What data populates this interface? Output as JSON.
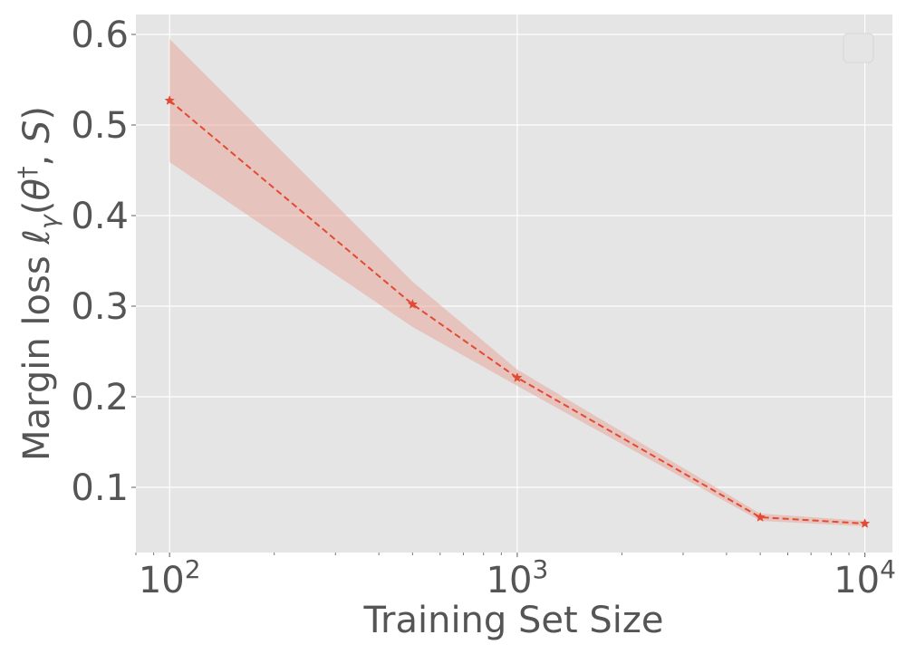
{
  "chart_data": {
    "type": "line",
    "xlabel": "Training Set Size",
    "ylabel": {
      "prefix": "Margin loss ",
      "ell": "ℓ",
      "sub": "γ",
      "open": "(",
      "theta": "θ",
      "sup": "†",
      "rest": ", ",
      "S": "S",
      "close": ")"
    },
    "x_scale": "log",
    "xlim": [
      80,
      12000
    ],
    "ylim": [
      0.028,
      0.622
    ],
    "x_ticks": [
      {
        "value": 100,
        "base": "10",
        "exp": "2"
      },
      {
        "value": 1000,
        "base": "10",
        "exp": "3"
      },
      {
        "value": 10000,
        "base": "10",
        "exp": "4"
      }
    ],
    "y_ticks": [
      {
        "value": 0.1,
        "label": "0.1"
      },
      {
        "value": 0.2,
        "label": "0.2"
      },
      {
        "value": 0.3,
        "label": "0.3"
      },
      {
        "value": 0.4,
        "label": "0.4"
      },
      {
        "value": 0.5,
        "label": "0.5"
      },
      {
        "value": 0.6,
        "label": "0.6"
      }
    ],
    "grid": true,
    "legend": "top-right, empty",
    "series": [
      {
        "x": [
          100,
          500,
          1000,
          5000,
          10000
        ],
        "y": [
          0.527,
          0.302,
          0.221,
          0.067,
          0.06
        ],
        "lower": [
          0.459,
          0.277,
          0.212,
          0.063,
          0.057
        ],
        "upper": [
          0.595,
          0.327,
          0.23,
          0.071,
          0.063
        ],
        "color": "#E24A33",
        "band_color": "#E8A99C",
        "linestyle": "dashed",
        "marker": "star"
      }
    ],
    "colors": {
      "plot_background": "#E5E5E5",
      "grid": "#FFFFFF",
      "text": "#555555"
    }
  }
}
